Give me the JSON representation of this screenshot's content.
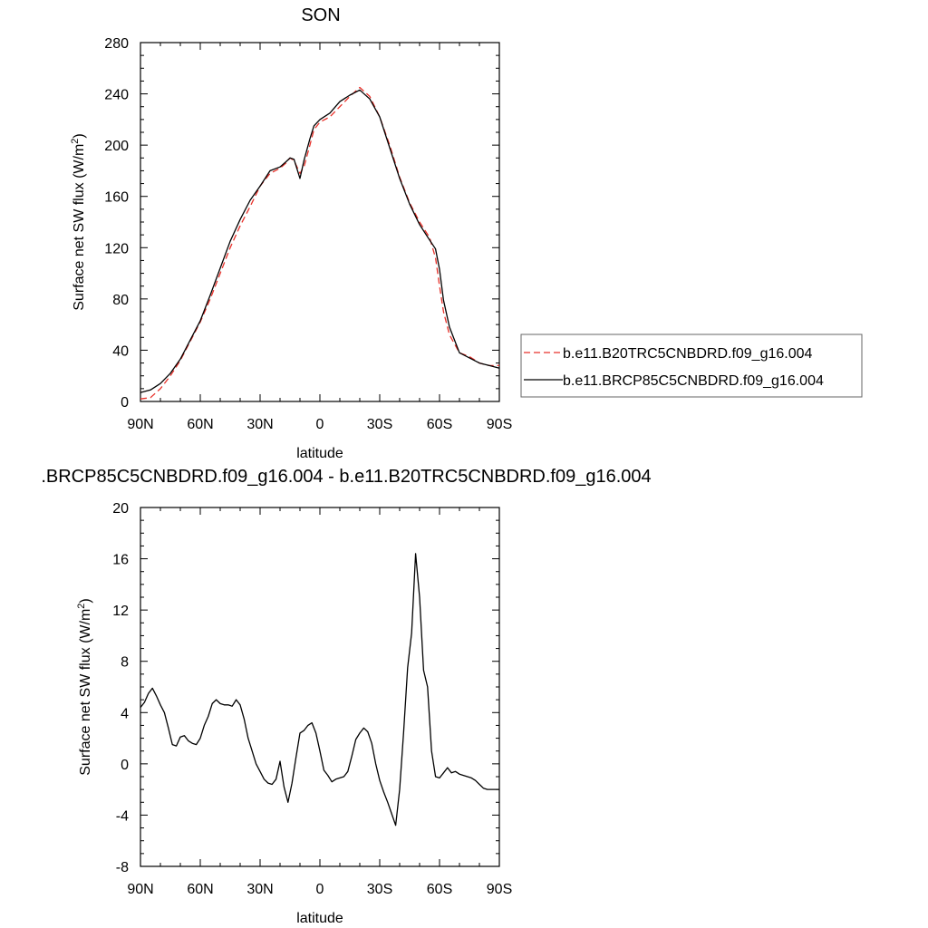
{
  "chart_data": [
    {
      "type": "line",
      "title": "SON",
      "xlabel": "latitude",
      "ylabel": "Surface net SW flux (W/m",
      "ylabel_sup": "2",
      "ylabel_end": ")",
      "xlim": [
        90,
        -90
      ],
      "ylim": [
        0,
        280
      ],
      "xticks": [
        90,
        60,
        30,
        0,
        -30,
        -60,
        -90
      ],
      "xtick_labels": [
        "90N",
        "60N",
        "30N",
        "0",
        "30S",
        "60S",
        "90S"
      ],
      "yticks": [
        0,
        40,
        80,
        120,
        160,
        200,
        240,
        280
      ],
      "ytick_labels": [
        "0",
        "40",
        "80",
        "120",
        "160",
        "200",
        "240",
        "280"
      ],
      "legend_position": "right",
      "series": [
        {
          "name": "b.e11.B20TRC5CNBDRD.f09_g16.004",
          "color": "#e8312a",
          "dash": "dashed",
          "x": [
            90,
            85,
            80,
            75,
            70,
            65,
            60,
            55,
            50,
            45,
            40,
            35,
            30,
            25,
            20,
            17,
            15,
            13,
            10,
            8,
            5,
            3,
            0,
            -5,
            -10,
            -15,
            -20,
            -25,
            -30,
            -35,
            -40,
            -45,
            -50,
            -55,
            -58,
            -60,
            -62,
            -65,
            -70,
            -75,
            -80,
            -85,
            -90
          ],
          "y": [
            2,
            3,
            10,
            20,
            32,
            47,
            62,
            80,
            100,
            120,
            137,
            152,
            168,
            178,
            182,
            186,
            190,
            188,
            178,
            183,
            200,
            212,
            218,
            222,
            230,
            238,
            245,
            238,
            222,
            200,
            175,
            155,
            140,
            128,
            112,
            90,
            70,
            52,
            38,
            35,
            30,
            28,
            28
          ]
        },
        {
          "name": "b.e11.BRCP85C5CNBDRD.f09_g16.004",
          "color": "#000000",
          "dash": "solid",
          "x": [
            90,
            85,
            80,
            75,
            70,
            65,
            60,
            55,
            50,
            45,
            40,
            35,
            30,
            25,
            20,
            17,
            15,
            13,
            10,
            8,
            5,
            3,
            0,
            -5,
            -10,
            -15,
            -20,
            -25,
            -30,
            -35,
            -40,
            -45,
            -50,
            -55,
            -58,
            -60,
            -62,
            -65,
            -70,
            -75,
            -80,
            -85,
            -90
          ],
          "y": [
            7,
            9,
            14,
            22,
            33,
            48,
            63,
            83,
            104,
            125,
            142,
            157,
            168,
            180,
            183,
            187,
            190,
            189,
            174,
            188,
            205,
            215,
            220,
            225,
            234,
            239,
            243,
            236,
            222,
            198,
            174,
            154,
            138,
            126,
            119,
            103,
            79,
            58,
            38,
            34,
            30,
            28,
            26
          ]
        }
      ]
    },
    {
      "type": "line",
      "title": ".BRCP85C5CNBDRD.f09_g16.004 - b.e11.B20TRC5CNBDRD.f09_g16.004",
      "xlabel": "latitude",
      "ylabel": "Surface net SW flux (W/m",
      "ylabel_sup": "2",
      "ylabel_end": ")",
      "xlim": [
        90,
        -90
      ],
      "ylim": [
        -8,
        20
      ],
      "xticks": [
        90,
        60,
        30,
        0,
        -30,
        -60,
        -90
      ],
      "xtick_labels": [
        "90N",
        "60N",
        "30N",
        "0",
        "30S",
        "60S",
        "90S"
      ],
      "yticks": [
        -8,
        -4,
        0,
        4,
        8,
        12,
        16,
        20
      ],
      "ytick_labels": [
        "-8",
        "-4",
        "0",
        "4",
        "8",
        "12",
        "16",
        "20"
      ],
      "series": [
        {
          "color": "#000000",
          "dash": "solid",
          "x": [
            90,
            88,
            86,
            84,
            82,
            80,
            78,
            76,
            74,
            72,
            70,
            68,
            66,
            64,
            62,
            60,
            58,
            56,
            54,
            52,
            50,
            48,
            46,
            44,
            42,
            40,
            38,
            36,
            34,
            32,
            30,
            28,
            26,
            24,
            22,
            20,
            18,
            16,
            14,
            12,
            10,
            8,
            6,
            4,
            2,
            0,
            -2,
            -4,
            -6,
            -8,
            -10,
            -12,
            -14,
            -16,
            -18,
            -20,
            -22,
            -24,
            -26,
            -28,
            -30,
            -32,
            -34,
            -36,
            -38,
            -40,
            -42,
            -44,
            -46,
            -48,
            -50,
            -52,
            -54,
            -56,
            -58,
            -60,
            -62,
            -64,
            -66,
            -68,
            -70,
            -72,
            -74,
            -76,
            -78,
            -80,
            -82,
            -84,
            -86,
            -88,
            -90
          ],
          "y": [
            4.4,
            4.8,
            5.5,
            5.9,
            5.3,
            4.6,
            4.0,
            2.8,
            1.5,
            1.4,
            2.1,
            2.2,
            1.8,
            1.6,
            1.5,
            2.0,
            3.0,
            3.7,
            4.7,
            5.0,
            4.7,
            4.6,
            4.6,
            4.5,
            5.0,
            4.6,
            3.5,
            2.0,
            1.0,
            0.0,
            -0.6,
            -1.2,
            -1.5,
            -1.6,
            -1.2,
            0.2,
            -1.8,
            -3.0,
            -1.5,
            0.5,
            2.4,
            2.6,
            3.0,
            3.2,
            2.4,
            1.0,
            -0.5,
            -0.9,
            -1.4,
            -1.2,
            -1.1,
            -1.0,
            -0.6,
            0.6,
            1.9,
            2.4,
            2.8,
            2.5,
            1.6,
            0.0,
            -1.3,
            -2.2,
            -3.0,
            -3.9,
            -4.8,
            -2.0,
            2.5,
            7.5,
            10.2,
            16.4,
            13.0,
            7.3,
            6.0,
            1.0,
            -1.0,
            -1.1,
            -0.7,
            -0.3,
            -0.7,
            -0.6,
            -0.8,
            -0.9,
            -1.0,
            -1.1,
            -1.3,
            -1.6,
            -1.9,
            -2.0,
            -2.0,
            -2.0,
            -2.0
          ]
        }
      ]
    }
  ]
}
